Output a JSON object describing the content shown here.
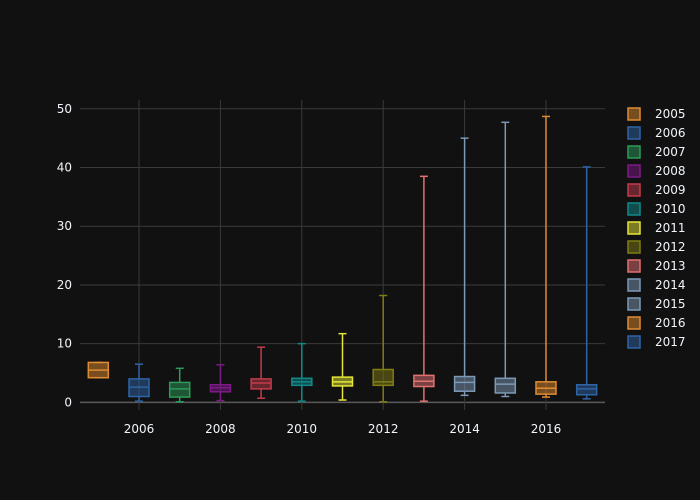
{
  "chart_data": {
    "type": "box",
    "title": "",
    "xlabel": "",
    "ylabel": "",
    "xlim": [
      2004.55,
      2017.45
    ],
    "ylim": [
      -1.3,
      51.5
    ],
    "x_ticks": [
      2006,
      2008,
      2010,
      2012,
      2014,
      2016
    ],
    "y_ticks": [
      0,
      10,
      20,
      30,
      40,
      50
    ],
    "grid": true,
    "legend_position": "right",
    "series": [
      {
        "name": "2005",
        "x": 2005,
        "color": "#e08b32",
        "whisker_low": 4.2,
        "q1": 4.2,
        "median": 5.5,
        "q3": 6.8,
        "whisker_high": 6.8
      },
      {
        "name": "2006",
        "x": 2006,
        "color": "#2f64a6",
        "whisker_low": 0.2,
        "q1": 1.0,
        "median": 2.6,
        "q3": 4.0,
        "whisker_high": 6.5
      },
      {
        "name": "2007",
        "x": 2007,
        "color": "#2d9b59",
        "whisker_low": 0.1,
        "q1": 0.9,
        "median": 2.3,
        "q3": 3.4,
        "whisker_high": 5.8
      },
      {
        "name": "2008",
        "x": 2008,
        "color": "#7d1a86",
        "whisker_low": 0.3,
        "q1": 1.8,
        "median": 2.5,
        "q3": 3.0,
        "whisker_high": 6.4
      },
      {
        "name": "2009",
        "x": 2009,
        "color": "#c23b4b",
        "whisker_low": 0.7,
        "q1": 2.3,
        "median": 3.3,
        "q3": 4.0,
        "whisker_high": 9.4
      },
      {
        "name": "2010",
        "x": 2010,
        "color": "#118a8a",
        "whisker_low": 0.2,
        "q1": 2.9,
        "median": 3.5,
        "q3": 4.1,
        "whisker_high": 10.0
      },
      {
        "name": "2011",
        "x": 2011,
        "color": "#e6e638",
        "whisker_low": 0.4,
        "q1": 2.8,
        "median": 3.5,
        "q3": 4.3,
        "whisker_high": 11.7
      },
      {
        "name": "2012",
        "x": 2012,
        "color": "#7f7d14",
        "whisker_low": 0.1,
        "q1": 2.9,
        "median": 3.5,
        "q3": 5.6,
        "whisker_high": 18.2
      },
      {
        "name": "2013",
        "x": 2013,
        "color": "#e27171",
        "whisker_low": 0.2,
        "q1": 2.7,
        "median": 3.6,
        "q3": 4.6,
        "whisker_high": 38.5
      },
      {
        "name": "2014",
        "x": 2014,
        "color": "#7d99b8",
        "whisker_low": 1.2,
        "q1": 1.9,
        "median": 3.4,
        "q3": 4.4,
        "whisker_high": 45.0
      },
      {
        "name": "2015",
        "x": 2015,
        "color": "#7d99b8",
        "whisker_low": 1.0,
        "q1": 1.6,
        "median": 3.1,
        "q3": 4.1,
        "whisker_high": 47.7
      },
      {
        "name": "2016",
        "x": 2016,
        "color": "#e08b32",
        "whisker_low": 0.9,
        "q1": 1.4,
        "median": 2.4,
        "q3": 3.5,
        "whisker_high": 48.7
      },
      {
        "name": "2017",
        "x": 2017,
        "color": "#2f64a6",
        "whisker_low": 0.6,
        "q1": 1.3,
        "median": 2.3,
        "q3": 3.0,
        "whisker_high": 40.1
      }
    ]
  }
}
